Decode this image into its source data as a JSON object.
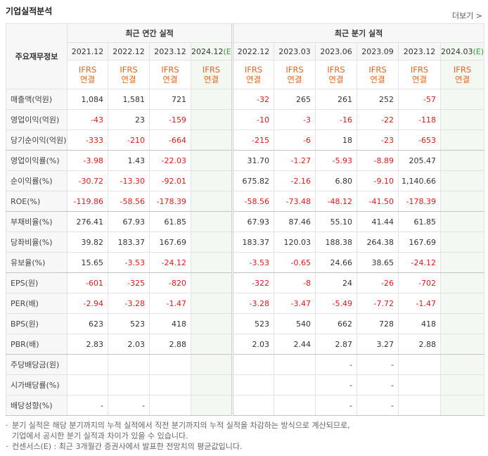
{
  "header": {
    "title": "기업실적분석",
    "more": "더보기"
  },
  "table": {
    "corner_label": "주요재무정보",
    "annual_header": "최근 연간 실적",
    "quarter_header": "최근 분기 실적",
    "annual_columns": [
      {
        "date": "2021.12"
      },
      {
        "date": "2022.12"
      },
      {
        "date": "2023.12"
      },
      {
        "date": "2024.12",
        "estimate": "(E)"
      }
    ],
    "quarter_columns": [
      {
        "date": "2022.12"
      },
      {
        "date": "2023.03"
      },
      {
        "date": "2023.06"
      },
      {
        "date": "2023.09"
      },
      {
        "date": "2023.12"
      },
      {
        "date": "2024.03",
        "estimate": "(E)"
      }
    ],
    "basis": {
      "standard": "IFRS",
      "scope": "연결"
    },
    "groups": [
      {
        "rows": [
          {
            "label": "매출액(억원)",
            "annual": [
              "1,084",
              "1,581",
              "721",
              null
            ],
            "quarter": [
              "-32",
              "265",
              "261",
              "252",
              "-57",
              null
            ]
          },
          {
            "label": "영업이익(억원)",
            "annual": [
              "-43",
              "23",
              "-159",
              null
            ],
            "quarter": [
              "-10",
              "-3",
              "-16",
              "-22",
              "-118",
              null
            ]
          },
          {
            "label": "당기순이익(억원)",
            "annual": [
              "-333",
              "-210",
              "-664",
              null
            ],
            "quarter": [
              "-215",
              "-6",
              "18",
              "-23",
              "-653",
              null
            ]
          }
        ]
      },
      {
        "rows": [
          {
            "label": "영업이익률(%)",
            "annual": [
              "-3.98",
              "1.43",
              "-22.03",
              null
            ],
            "quarter": [
              "31.70",
              "-1.27",
              "-5.93",
              "-8.89",
              "205.47",
              null
            ]
          },
          {
            "label": "순이익률(%)",
            "annual": [
              "-30.72",
              "-13.30",
              "-92.01",
              null
            ],
            "quarter": [
              "675.82",
              "-2.16",
              "6.80",
              "-9.10",
              "1,140.66",
              null
            ]
          },
          {
            "label": "ROE(%)",
            "annual": [
              "-119.86",
              "-58.56",
              "-178.39",
              null
            ],
            "quarter": [
              "-58.56",
              "-73.48",
              "-48.12",
              "-41.50",
              "-178.39",
              null
            ]
          }
        ]
      },
      {
        "rows": [
          {
            "label": "부채비율(%)",
            "annual": [
              "276.41",
              "67.93",
              "61.85",
              null
            ],
            "quarter": [
              "67.93",
              "87.46",
              "55.10",
              "41.44",
              "61.85",
              null
            ]
          },
          {
            "label": "당좌비율(%)",
            "annual": [
              "39.82",
              "183.37",
              "167.69",
              null
            ],
            "quarter": [
              "183.37",
              "120.03",
              "188.38",
              "264.38",
              "167.69",
              null
            ]
          },
          {
            "label": "유보율(%)",
            "annual": [
              "15.65",
              "-3.53",
              "-24.12",
              null
            ],
            "quarter": [
              "-3.53",
              "-0.65",
              "24.66",
              "38.65",
              "-24.12",
              null
            ]
          }
        ]
      },
      {
        "rows": [
          {
            "label": "EPS(원)",
            "annual": [
              "-601",
              "-325",
              "-820",
              null
            ],
            "quarter": [
              "-322",
              "-8",
              "24",
              "-26",
              "-702",
              null
            ]
          },
          {
            "label": "PER(배)",
            "annual": [
              "-2.94",
              "-3.28",
              "-1.47",
              null
            ],
            "quarter": [
              "-3.28",
              "-3.47",
              "-5.49",
              "-7.72",
              "-1.47",
              null
            ]
          },
          {
            "label": "BPS(원)",
            "annual": [
              "623",
              "523",
              "418",
              null
            ],
            "quarter": [
              "523",
              "540",
              "662",
              "728",
              "418",
              null
            ]
          },
          {
            "label": "PBR(배)",
            "annual": [
              "2.83",
              "2.03",
              "2.88",
              null
            ],
            "quarter": [
              "2.03",
              "2.44",
              "2.87",
              "3.27",
              "2.88",
              null
            ]
          }
        ]
      },
      {
        "rows": [
          {
            "label": "주당배당금(원)",
            "annual": [
              null,
              null,
              null,
              null
            ],
            "quarter": [
              null,
              null,
              "-",
              "-",
              null,
              null
            ]
          },
          {
            "label": "시가배당률(%)",
            "annual": [
              null,
              null,
              null,
              null
            ],
            "quarter": [
              null,
              null,
              "-",
              "-",
              null,
              null
            ]
          },
          {
            "label": "배당성향(%)",
            "annual": [
              "-",
              "-",
              null,
              null
            ],
            "quarter": [
              null,
              null,
              "-",
              "-",
              null,
              null
            ]
          }
        ]
      }
    ]
  },
  "notes": [
    [
      "분기 실적은 해당 분기까지의 누적 실적에서 직전 분기까지의 누적 실적을 차감하는 방식으로 계산되므로,",
      "기업에서 공시한 분기 실적과 차이가 있을 수 있습니다."
    ],
    [
      "컨센서스(E) : 최근 3개월간 증권사에서 발표한 전망치의 평균값입니다."
    ]
  ]
}
